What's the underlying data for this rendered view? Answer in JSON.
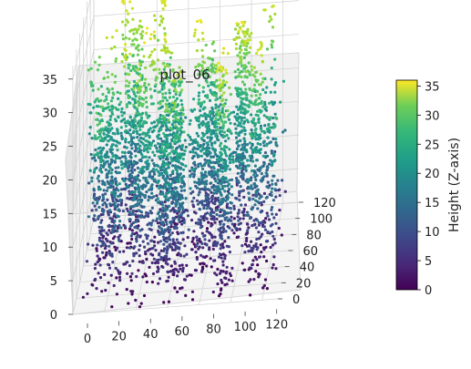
{
  "chart_data": {
    "type": "scatter",
    "title": "plot_06",
    "x_ticks": [
      "0",
      "20",
      "40",
      "60",
      "80",
      "100",
      "120"
    ],
    "y_ticks": [
      "0",
      "20",
      "40",
      "60",
      "80",
      "100",
      "120"
    ],
    "z_ticks": [
      "0",
      "5",
      "10",
      "15",
      "20",
      "25",
      "30",
      "35"
    ],
    "xlim": [
      0,
      130
    ],
    "ylim": [
      0,
      120
    ],
    "zlim": [
      0,
      37
    ],
    "colorbar": {
      "label": "Height (Z-axis)",
      "ticks": [
        "0",
        "5",
        "10",
        "15",
        "20",
        "25",
        "30",
        "35"
      ],
      "range": [
        0,
        36
      ],
      "colormap": "viridis"
    },
    "point_cloud": {
      "x_range": [
        5,
        125
      ],
      "y_range": [
        0,
        100
      ],
      "z_range": [
        0,
        36
      ],
      "description_of_shape": "dense column-like canopy points with higher values at the top"
    }
  }
}
